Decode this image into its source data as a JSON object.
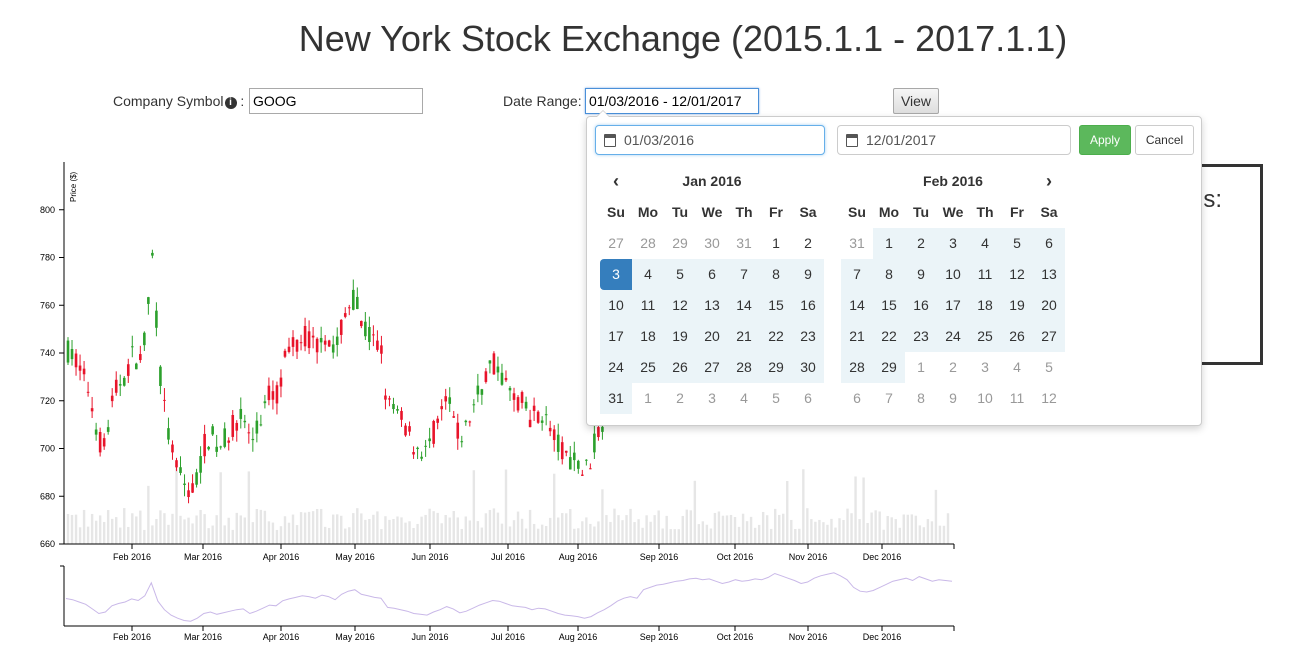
{
  "page": {
    "title": "New York Stock Exchange (2015.1.1 - 2017.1.1)"
  },
  "form": {
    "symbol_label": "Company Symbol",
    "symbol_info_glyph": "i",
    "symbol_colon": ":",
    "symbol_value": "GOOG",
    "date_label": "Date Range:",
    "date_value": "01/03/2016 - 12/01/2017",
    "view_label": "View"
  },
  "side_panel": {
    "text": "ls:"
  },
  "picker": {
    "start_value": "01/03/2016",
    "end_value": "12/01/2017",
    "apply_label": "Apply",
    "cancel_label": "Cancel",
    "prev_icon": "‹",
    "next_icon": "›",
    "weekdays": [
      "Su",
      "Mo",
      "Tu",
      "We",
      "Th",
      "Fr",
      "Sa"
    ],
    "left": {
      "title": "Jan 2016",
      "weeks": [
        [
          "27",
          "28",
          "29",
          "30",
          "31",
          "1",
          "2"
        ],
        [
          "3",
          "4",
          "5",
          "6",
          "7",
          "8",
          "9"
        ],
        [
          "10",
          "11",
          "12",
          "13",
          "14",
          "15",
          "16"
        ],
        [
          "17",
          "18",
          "19",
          "20",
          "21",
          "22",
          "23"
        ],
        [
          "24",
          "25",
          "26",
          "27",
          "28",
          "29",
          "30"
        ],
        [
          "31",
          "1",
          "2",
          "3",
          "4",
          "5",
          "6"
        ]
      ]
    },
    "right": {
      "title": "Feb 2016",
      "weeks": [
        [
          "31",
          "1",
          "2",
          "3",
          "4",
          "5",
          "6"
        ],
        [
          "7",
          "8",
          "9",
          "10",
          "11",
          "12",
          "13"
        ],
        [
          "14",
          "15",
          "16",
          "17",
          "18",
          "19",
          "20"
        ],
        [
          "21",
          "22",
          "23",
          "24",
          "25",
          "26",
          "27"
        ],
        [
          "28",
          "29",
          "1",
          "2",
          "3",
          "4",
          "5"
        ],
        [
          "6",
          "7",
          "8",
          "9",
          "10",
          "11",
          "12"
        ]
      ]
    }
  },
  "chart_data": {
    "type": "candlestick",
    "ylabel": "Price ($)",
    "ylim": [
      660,
      820
    ],
    "yticks": [
      660,
      680,
      700,
      720,
      740,
      760,
      780,
      800
    ],
    "xticks": [
      "Feb 2016",
      "Mar 2016",
      "Apr 2016",
      "May 2016",
      "Jun 2016",
      "Jul 2016",
      "Aug 2016",
      "Sep 2016",
      "Oct 2016",
      "Nov 2016",
      "Dec 2016"
    ],
    "up_color": "#2ca02c",
    "down_color": "#e8142a",
    "volume_color": "#e6e6e6",
    "navigator_color": "#c9b8e8",
    "close_series": [
      741,
      738,
      732,
      726,
      714,
      702,
      706,
      722,
      728,
      732,
      740,
      736,
      748,
      782,
      734,
      712,
      698,
      690,
      684,
      682,
      690,
      702,
      706,
      700,
      704,
      708,
      712,
      714,
      702,
      708,
      716,
      724,
      722,
      735,
      740,
      744,
      748,
      746,
      742,
      750,
      746,
      738,
      752,
      760,
      764,
      752,
      748,
      744,
      742,
      718,
      716,
      712,
      708,
      702,
      700,
      698,
      706,
      712,
      720,
      714,
      704,
      708,
      716,
      724,
      730,
      736,
      734,
      728,
      722,
      720,
      718,
      712,
      716,
      714,
      708,
      702,
      698,
      696,
      694,
      690,
      694,
      704,
      712,
      722,
      734,
      742,
      746,
      742,
      764,
      770,
      776,
      778,
      782,
      786,
      788,
      792,
      794,
      790,
      792,
      786,
      780,
      784,
      790,
      786,
      788,
      792,
      790,
      796,
      806,
      800,
      794,
      788,
      780,
      784,
      794,
      800,
      804,
      808,
      800,
      790,
      770,
      760,
      758,
      762,
      770,
      778,
      786,
      790,
      794,
      788,
      798,
      792,
      786,
      790,
      788,
      786
    ]
  }
}
